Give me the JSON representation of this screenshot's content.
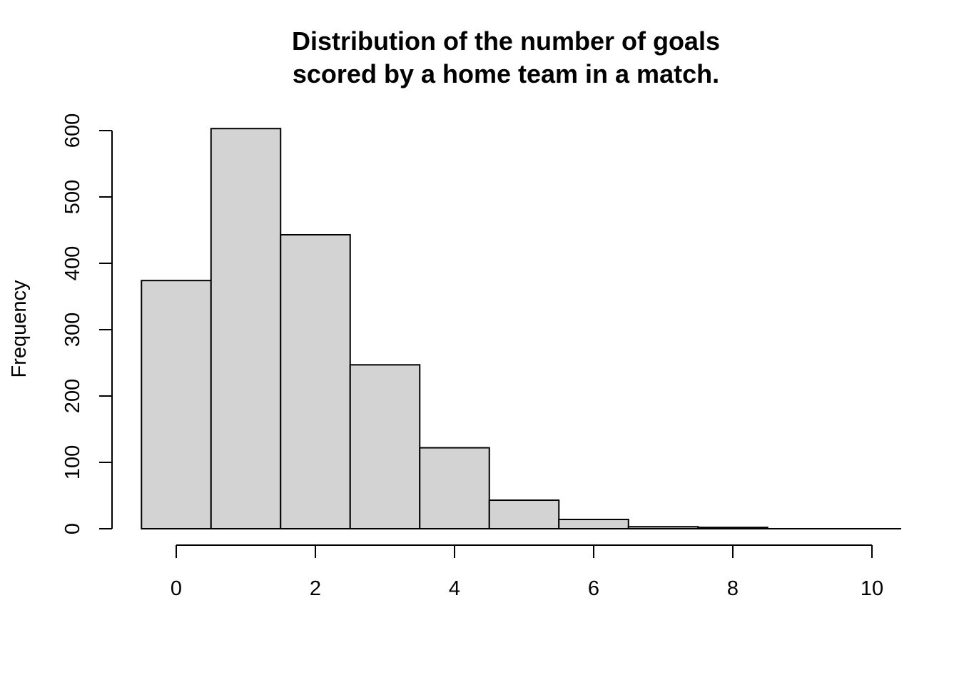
{
  "chart_data": {
    "type": "bar",
    "title": [
      "Distribution of the number of goals",
      "scored by a home team in a match."
    ],
    "xlabel": "",
    "ylabel": "Frequency",
    "bins": [
      {
        "x0": -0.5,
        "x1": 0.5,
        "count": 374
      },
      {
        "x0": 0.5,
        "x1": 1.5,
        "count": 603
      },
      {
        "x0": 1.5,
        "x1": 2.5,
        "count": 443
      },
      {
        "x0": 2.5,
        "x1": 3.5,
        "count": 247
      },
      {
        "x0": 3.5,
        "x1": 4.5,
        "count": 122
      },
      {
        "x0": 4.5,
        "x1": 5.5,
        "count": 43
      },
      {
        "x0": 5.5,
        "x1": 6.5,
        "count": 14
      },
      {
        "x0": 6.5,
        "x1": 7.5,
        "count": 3
      },
      {
        "x0": 7.5,
        "x1": 8.5,
        "count": 2
      },
      {
        "x0": 8.5,
        "x1": 9.5,
        "count": 0
      },
      {
        "x0": 9.5,
        "x1": 10.5,
        "count": 0
      }
    ],
    "xticks": [
      0,
      2,
      4,
      6,
      8,
      10
    ],
    "yticks": [
      0,
      100,
      200,
      300,
      400,
      500,
      600
    ],
    "xlim": [
      -0.5,
      10
    ],
    "ylim": [
      0,
      600
    ],
    "grid": false,
    "colors": {
      "bar_fill": "#d3d3d3",
      "bar_stroke": "#000000"
    }
  }
}
